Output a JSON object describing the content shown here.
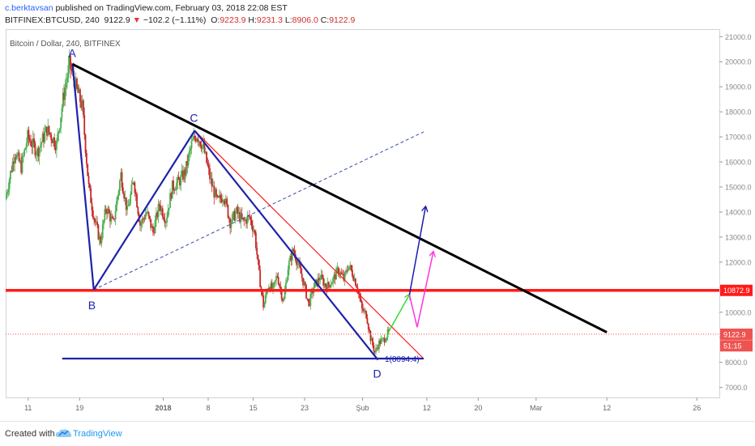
{
  "header": {
    "author": "c.berktavsan",
    "published": " published on TradingView.com, February 03, 2018 22:08 EST",
    "symbol": "BITFINEX:BTCUSD, 240",
    "last": "9122.9",
    "change": "−102.2 (−1.11%)",
    "o_label": "O:",
    "o": "9223.9",
    "h_label": "H:",
    "h": "9231.3",
    "l_label": "L:",
    "l": "8906.0",
    "c_label": "C:",
    "c": "9122.9"
  },
  "footer": {
    "created": "Created with",
    "brand": "TradingView"
  },
  "colors": {
    "up": "#26a69a",
    "down": "#ef5350",
    "candle_up": "#4caf50",
    "candle_down": "#c62828",
    "wave": "#1e22aa",
    "trend": "#000000",
    "red_line": "#ff1a1a",
    "dashed": "#3949ab",
    "arrow_green": "#33dd33",
    "arrow_pink": "#ff33dd",
    "arrow_navy": "#1a1aaa"
  },
  "chart_data": {
    "type": "candlestick",
    "title": "Bitcoin / Dollar, 240, BITFINEX",
    "y_range": [
      6600,
      21300
    ],
    "y_ticks": [
      "21000.0",
      "20000.0",
      "19000.0",
      "18000.0",
      "17000.0",
      "16000.0",
      "15000.0",
      "14000.0",
      "13000.0",
      "12000.0",
      "11000.0",
      "10000.0",
      "9000.0",
      "8000.0",
      "7000.0"
    ],
    "y_tick_values": [
      21000,
      20000,
      19000,
      18000,
      17000,
      16000,
      15000,
      14000,
      13000,
      12000,
      11000,
      10000,
      9000,
      8000,
      7000
    ],
    "x_ticks": [
      {
        "label": "11",
        "day": 11
      },
      {
        "label": "19",
        "day": 19
      },
      {
        "label": "2018",
        "day": 32
      },
      {
        "label": "8",
        "day": 39
      },
      {
        "label": "15",
        "day": 46
      },
      {
        "label": "23",
        "day": 54
      },
      {
        "label": "Şub",
        "day": 63
      },
      {
        "label": "12",
        "day": 73
      },
      {
        "label": "20",
        "day": 81
      },
      {
        "label": "Mar",
        "day": 90
      },
      {
        "label": "12",
        "day": 101
      },
      {
        "label": "26",
        "day": 115
      }
    ],
    "x_tick_bold": [
      "2018"
    ],
    "x_range_days": [
      7.5,
      118.5
    ],
    "price_series_days_4h": "Dec 7, 2017 – Feb 3, 2018 (4h candles)",
    "anchors": [
      {
        "day": 7.5,
        "p": 14500
      },
      {
        "day": 9,
        "p": 16400
      },
      {
        "day": 10,
        "p": 15800
      },
      {
        "day": 11,
        "p": 17000
      },
      {
        "day": 12.5,
        "p": 16400
      },
      {
        "day": 14,
        "p": 17300
      },
      {
        "day": 15.5,
        "p": 16700
      },
      {
        "day": 16.5,
        "p": 18500
      },
      {
        "day": 17.5,
        "p": 19900
      },
      {
        "day": 18.5,
        "p": 19000
      },
      {
        "day": 19.5,
        "p": 18200
      },
      {
        "day": 20.5,
        "p": 15000
      },
      {
        "day": 21.3,
        "p": 13800
      },
      {
        "day": 22.3,
        "p": 12800
      },
      {
        "day": 23.2,
        "p": 14200
      },
      {
        "day": 24.3,
        "p": 13500
      },
      {
        "day": 25.5,
        "p": 15500
      },
      {
        "day": 26.5,
        "p": 14000
      },
      {
        "day": 27.5,
        "p": 15300
      },
      {
        "day": 28.5,
        "p": 13500
      },
      {
        "day": 29.5,
        "p": 14000
      },
      {
        "day": 30.5,
        "p": 13200
      },
      {
        "day": 31.5,
        "p": 14300
      },
      {
        "day": 32.5,
        "p": 13700
      },
      {
        "day": 33.5,
        "p": 15000
      },
      {
        "day": 34.5,
        "p": 15200
      },
      {
        "day": 35.5,
        "p": 15600
      },
      {
        "day": 36.5,
        "p": 16700
      },
      {
        "day": 37.3,
        "p": 17100
      },
      {
        "day": 38.3,
        "p": 16600
      },
      {
        "day": 39.5,
        "p": 15200
      },
      {
        "day": 40.5,
        "p": 14400
      },
      {
        "day": 41.5,
        "p": 14700
      },
      {
        "day": 42.5,
        "p": 13600
      },
      {
        "day": 43.5,
        "p": 14000
      },
      {
        "day": 44.5,
        "p": 13600
      },
      {
        "day": 45.5,
        "p": 13800
      },
      {
        "day": 46.3,
        "p": 13200
      },
      {
        "day": 47,
        "p": 11500
      },
      {
        "day": 47.7,
        "p": 10200
      },
      {
        "day": 48.4,
        "p": 11100
      },
      {
        "day": 49.2,
        "p": 10900
      },
      {
        "day": 49.8,
        "p": 11500
      },
      {
        "day": 50.8,
        "p": 10400
      },
      {
        "day": 51.5,
        "p": 11800
      },
      {
        "day": 52.3,
        "p": 12500
      },
      {
        "day": 53.2,
        "p": 11800
      },
      {
        "day": 54,
        "p": 11100
      },
      {
        "day": 54.7,
        "p": 10300
      },
      {
        "day": 55.5,
        "p": 11000
      },
      {
        "day": 56.5,
        "p": 11400
      },
      {
        "day": 57.5,
        "p": 11000
      },
      {
        "day": 58.5,
        "p": 11300
      },
      {
        "day": 59.3,
        "p": 11700
      },
      {
        "day": 60.2,
        "p": 11300
      },
      {
        "day": 60.9,
        "p": 11900
      },
      {
        "day": 61.6,
        "p": 11500
      },
      {
        "day": 62.3,
        "p": 11000
      },
      {
        "day": 63,
        "p": 10100
      },
      {
        "day": 63.7,
        "p": 9900
      },
      {
        "day": 64.3,
        "p": 9000
      },
      {
        "day": 65,
        "p": 8400
      },
      {
        "day": 65.7,
        "p": 8800
      },
      {
        "day": 66.4,
        "p": 8900
      },
      {
        "day": 67,
        "p": 9150
      }
    ],
    "points": [
      {
        "name": "A",
        "day": 17.9,
        "p": 19900
      },
      {
        "name": "B",
        "day": 21.2,
        "p": 10900
      },
      {
        "name": "C",
        "day": 36.9,
        "p": 17250
      },
      {
        "name": "D",
        "day": 65.4,
        "p": 8100
      }
    ],
    "lines": [
      {
        "name": "trend",
        "from": {
          "day": 17.9,
          "p": 19900
        },
        "to": {
          "day": 101,
          "p": 9200
        }
      },
      {
        "name": "red-diagonal",
        "from": {
          "day": 36.9,
          "p": 17250
        },
        "to": {
          "day": 72.5,
          "p": 8150
        }
      },
      {
        "name": "dashed-channel",
        "from": {
          "day": 21.2,
          "p": 10900
        },
        "to": {
          "day": 72.5,
          "p": 17200
        }
      },
      {
        "name": "support-line",
        "price": 10872.9
      },
      {
        "name": "d-level",
        "from": {
          "day": 16.3,
          "p": 8150
        },
        "to": {
          "day": 72.5,
          "p": 8150
        }
      }
    ],
    "annotations": {
      "d_level_label": "1(8094.4)",
      "price_tags": [
        {
          "name": "support",
          "value": "10872.9",
          "price": 10872.9,
          "bg": "#ff1a1a"
        },
        {
          "name": "last-price",
          "value": "9122.9",
          "price": 9122.9,
          "bg": "#ef5350"
        },
        {
          "name": "countdown",
          "value": "51:15",
          "price": 8660,
          "bg": "#ef5350"
        }
      ],
      "last_price": 9122.9
    }
  }
}
